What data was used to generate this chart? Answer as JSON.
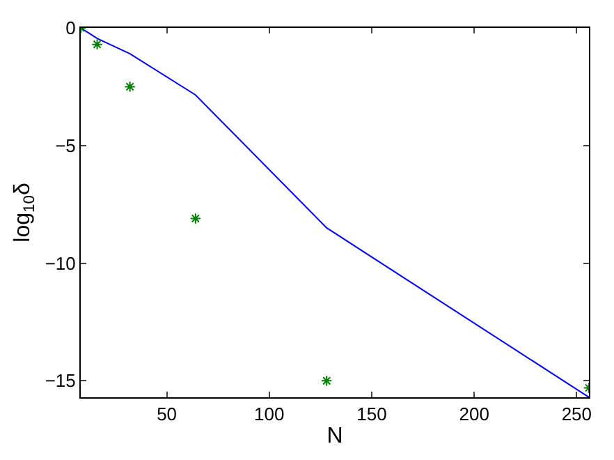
{
  "chart_data": {
    "type": "line",
    "xlabel": "N",
    "ylabel": "log$_{10}$δ",
    "x": [
      8,
      16,
      32,
      64,
      128,
      256
    ],
    "xlim": [
      8,
      256
    ],
    "xticks": [
      50,
      100,
      150,
      200,
      250
    ],
    "ylim": [
      -15.7,
      0
    ],
    "yticks": [
      {
        "value": 0,
        "label": "0"
      },
      {
        "value": -5,
        "label": "−5"
      },
      {
        "value": -10,
        "label": "−10"
      },
      {
        "value": -15,
        "label": "−15"
      }
    ],
    "grid": false,
    "legend": false,
    "series": [
      {
        "color": "#0000ff",
        "values": [
          0,
          -0.45,
          -1.1,
          -2.85,
          -8.5,
          -15.7
        ]
      },
      {
        "type": "scatter",
        "color": "#008000",
        "marker": "cross",
        "values": [
          0,
          -0.7,
          -2.5,
          -8.1,
          -15,
          -15.3
        ]
      }
    ]
  }
}
